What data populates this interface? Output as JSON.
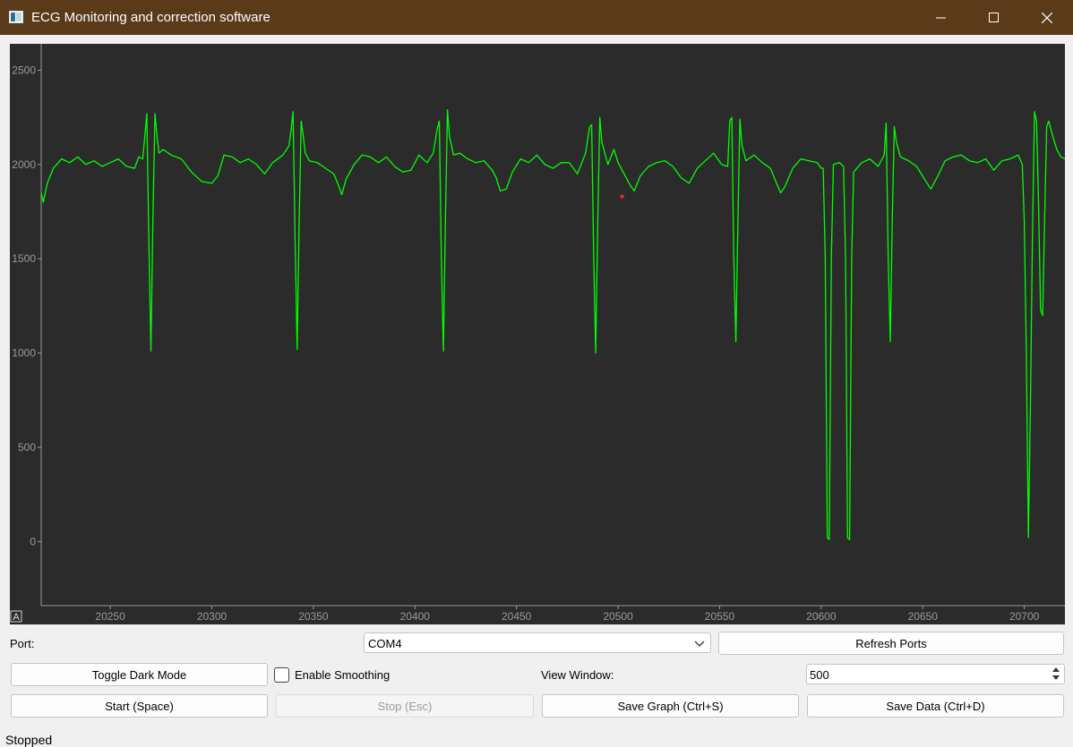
{
  "window": {
    "title": "ECG Monitoring and correction software",
    "minimize_icon": "minimize-icon",
    "maximize_icon": "maximize-icon",
    "close_icon": "close-icon"
  },
  "colors": {
    "title_bar": "#5b3a19",
    "plot_background": "#2b2b2b",
    "signal": "#00ff00",
    "marker": "#ff2020",
    "axis_text": "#9a9a9a"
  },
  "chart_data": {
    "type": "line",
    "title": "",
    "xlabel": "",
    "ylabel": "",
    "xlim": [
      20216,
      20720
    ],
    "ylim": [
      -340,
      2640
    ],
    "x_ticks": [
      "20250",
      "20300",
      "20350",
      "20400",
      "20450",
      "20500",
      "20550",
      "20600",
      "20650",
      "20700"
    ],
    "y_ticks": [
      "0",
      "500",
      "1000",
      "1500",
      "2000",
      "2500"
    ],
    "grid": false,
    "auto_range_button": "A",
    "series": [
      {
        "color": "#00ff00",
        "points": [
          [
            20216,
            1850
          ],
          [
            20217,
            1800
          ],
          [
            20219,
            1900
          ],
          [
            20222,
            1980
          ],
          [
            20226,
            2030
          ],
          [
            20230,
            2010
          ],
          [
            20234,
            2040
          ],
          [
            20238,
            2000
          ],
          [
            20242,
            2020
          ],
          [
            20246,
            1990
          ],
          [
            20250,
            2010
          ],
          [
            20254,
            2030
          ],
          [
            20258,
            1990
          ],
          [
            20262,
            1980
          ],
          [
            20264,
            2040
          ],
          [
            20266,
            2030
          ],
          [
            20267,
            2150
          ],
          [
            20268,
            2270
          ],
          [
            20269,
            1600
          ],
          [
            20270,
            1010
          ],
          [
            20271,
            1700
          ],
          [
            20272,
            2270
          ],
          [
            20273,
            2150
          ],
          [
            20274,
            2060
          ],
          [
            20276,
            2080
          ],
          [
            20280,
            2050
          ],
          [
            20285,
            2030
          ],
          [
            20290,
            1960
          ],
          [
            20295,
            1910
          ],
          [
            20300,
            1900
          ],
          [
            20303,
            1940
          ],
          [
            20306,
            2050
          ],
          [
            20310,
            2040
          ],
          [
            20314,
            2010
          ],
          [
            20318,
            2030
          ],
          [
            20322,
            2000
          ],
          [
            20326,
            1950
          ],
          [
            20330,
            2010
          ],
          [
            20335,
            2050
          ],
          [
            20338,
            2100
          ],
          [
            20339,
            2180
          ],
          [
            20340,
            2280
          ],
          [
            20341,
            1600
          ],
          [
            20342,
            1020
          ],
          [
            20343,
            1700
          ],
          [
            20344,
            2230
          ],
          [
            20345,
            2150
          ],
          [
            20346,
            2060
          ],
          [
            20348,
            2020
          ],
          [
            20352,
            2010
          ],
          [
            20356,
            1980
          ],
          [
            20360,
            1950
          ],
          [
            20362,
            1900
          ],
          [
            20364,
            1840
          ],
          [
            20366,
            1920
          ],
          [
            20370,
            2000
          ],
          [
            20374,
            2050
          ],
          [
            20378,
            2040
          ],
          [
            20382,
            2010
          ],
          [
            20386,
            2040
          ],
          [
            20390,
            1990
          ],
          [
            20394,
            1960
          ],
          [
            20398,
            1970
          ],
          [
            20402,
            2050
          ],
          [
            20406,
            2010
          ],
          [
            20409,
            2060
          ],
          [
            20411,
            2190
          ],
          [
            20412,
            2230
          ],
          [
            20413,
            1500
          ],
          [
            20414,
            1010
          ],
          [
            20415,
            1700
          ],
          [
            20416,
            2290
          ],
          [
            20417,
            2150
          ],
          [
            20419,
            2050
          ],
          [
            20422,
            2060
          ],
          [
            20426,
            2030
          ],
          [
            20430,
            2010
          ],
          [
            20434,
            2020
          ],
          [
            20438,
            1970
          ],
          [
            20440,
            1930
          ],
          [
            20442,
            1860
          ],
          [
            20445,
            1870
          ],
          [
            20448,
            1960
          ],
          [
            20452,
            2030
          ],
          [
            20456,
            2010
          ],
          [
            20460,
            2050
          ],
          [
            20464,
            2000
          ],
          [
            20468,
            1980
          ],
          [
            20472,
            2010
          ],
          [
            20476,
            2010
          ],
          [
            20480,
            1950
          ],
          [
            20484,
            2060
          ],
          [
            20486,
            2200
          ],
          [
            20487,
            2210
          ],
          [
            20488,
            1500
          ],
          [
            20489,
            1000
          ],
          [
            20490,
            1700
          ],
          [
            20491,
            2250
          ],
          [
            20492,
            2120
          ],
          [
            20495,
            2000
          ],
          [
            20498,
            2080
          ],
          [
            20500,
            2010
          ],
          [
            20503,
            1950
          ],
          [
            20506,
            1890
          ],
          [
            20508,
            1860
          ],
          [
            20511,
            1940
          ],
          [
            20515,
            1990
          ],
          [
            20519,
            2010
          ],
          [
            20523,
            2020
          ],
          [
            20527,
            1990
          ],
          [
            20531,
            1930
          ],
          [
            20535,
            1900
          ],
          [
            20539,
            1980
          ],
          [
            20543,
            2020
          ],
          [
            20547,
            2060
          ],
          [
            20551,
            2000
          ],
          [
            20554,
            1990
          ],
          [
            20555,
            2230
          ],
          [
            20556,
            2250
          ],
          [
            20557,
            1500
          ],
          [
            20558,
            1060
          ],
          [
            20559,
            1700
          ],
          [
            20560,
            2240
          ],
          [
            20561,
            2100
          ],
          [
            20563,
            2020
          ],
          [
            20567,
            2050
          ],
          [
            20571,
            2010
          ],
          [
            20575,
            1980
          ],
          [
            20578,
            1900
          ],
          [
            20580,
            1850
          ],
          [
            20582,
            1880
          ],
          [
            20586,
            1980
          ],
          [
            20590,
            2030
          ],
          [
            20594,
            2020
          ],
          [
            20598,
            2010
          ],
          [
            20600,
            1980
          ],
          [
            20601,
            1980
          ],
          [
            20602,
            1500
          ],
          [
            20603,
            20
          ],
          [
            20604,
            10
          ],
          [
            20605,
            1500
          ],
          [
            20606,
            2000
          ],
          [
            20609,
            2010
          ],
          [
            20611,
            1990
          ],
          [
            20612,
            1500
          ],
          [
            20613,
            20
          ],
          [
            20614,
            10
          ],
          [
            20615,
            1500
          ],
          [
            20616,
            1960
          ],
          [
            20620,
            2010
          ],
          [
            20624,
            2030
          ],
          [
            20628,
            1990
          ],
          [
            20631,
            2050
          ],
          [
            20632,
            2220
          ],
          [
            20633,
            1500
          ],
          [
            20634,
            1060
          ],
          [
            20635,
            1700
          ],
          [
            20636,
            2200
          ],
          [
            20637,
            2120
          ],
          [
            20639,
            2040
          ],
          [
            20643,
            2020
          ],
          [
            20647,
            1990
          ],
          [
            20651,
            1920
          ],
          [
            20654,
            1870
          ],
          [
            20657,
            1930
          ],
          [
            20661,
            2020
          ],
          [
            20665,
            2040
          ],
          [
            20669,
            2050
          ],
          [
            20673,
            2020
          ],
          [
            20677,
            2010
          ],
          [
            20681,
            2030
          ],
          [
            20685,
            1970
          ],
          [
            20689,
            2020
          ],
          [
            20693,
            2030
          ],
          [
            20697,
            2050
          ],
          [
            20699,
            2000
          ],
          [
            20700,
            1700
          ],
          [
            20701,
            1000
          ],
          [
            20702,
            20
          ],
          [
            20703,
            700
          ],
          [
            20704,
            1600
          ],
          [
            20705,
            2280
          ],
          [
            20706,
            2230
          ],
          [
            20707,
            1800
          ],
          [
            20708,
            1230
          ],
          [
            20709,
            1200
          ],
          [
            20710,
            1700
          ],
          [
            20711,
            2200
          ],
          [
            20712,
            2230
          ],
          [
            20714,
            2150
          ],
          [
            20716,
            2080
          ],
          [
            20718,
            2040
          ],
          [
            20720,
            2030
          ]
        ]
      }
    ],
    "marker_point": [
      20502,
      1830
    ]
  },
  "controls": {
    "port_label": "Port:",
    "port_value": "COM4",
    "port_dropdown_icon": "chevron-down-icon",
    "refresh_ports": "Refresh Ports",
    "toggle_dark_mode": "Toggle Dark Mode",
    "enable_smoothing": "Enable Smoothing",
    "smoothing_checked": false,
    "view_window_label": "View Window:",
    "view_window_value": "500",
    "start": "Start (Space)",
    "stop": "Stop (Esc)",
    "save_graph": "Save Graph (Ctrl+S)",
    "save_data": "Save Data (Ctrl+D)"
  },
  "status": {
    "text": "Stopped"
  }
}
